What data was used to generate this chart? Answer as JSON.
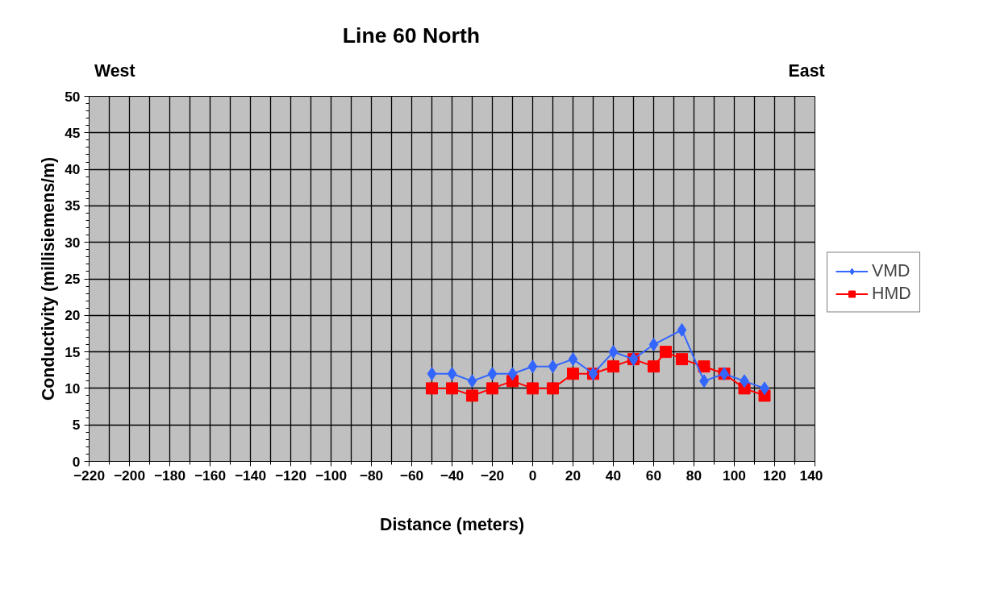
{
  "chart_data": {
    "type": "line",
    "title": "Line 60 North",
    "xlabel": "Distance (meters)",
    "ylabel": "Conductivity (millisiemens/m)",
    "annotations": [
      "West",
      "East"
    ],
    "xlim": [
      -220,
      140
    ],
    "xticks": [
      -220,
      -200,
      -180,
      -160,
      -140,
      -120,
      -100,
      -80,
      -60,
      -40,
      -20,
      0,
      20,
      40,
      60,
      80,
      100,
      120,
      140
    ],
    "ylim": [
      0,
      50
    ],
    "yticks": [
      0,
      5,
      10,
      15,
      20,
      25,
      30,
      35,
      40,
      45,
      50
    ],
    "grid": true,
    "legend": "right",
    "series": [
      {
        "name": "VMD",
        "color": "#3366ff",
        "marker": "diamond",
        "x": [
          -50,
          -40,
          -30,
          -20,
          -10,
          0,
          10,
          20,
          30,
          40,
          50,
          60,
          74,
          85,
          95,
          105,
          115
        ],
        "values": [
          12,
          12,
          11,
          12,
          12,
          13,
          13,
          14,
          12,
          15,
          14,
          16,
          18,
          11,
          12,
          11,
          10
        ]
      },
      {
        "name": "HMD",
        "color": "#ff0000",
        "marker": "square",
        "x": [
          -50,
          -40,
          -30,
          -20,
          -10,
          0,
          10,
          20,
          30,
          40,
          50,
          60,
          66,
          74,
          85,
          95,
          105,
          115
        ],
        "values": [
          10,
          10,
          9,
          10,
          11,
          10,
          10,
          12,
          12,
          13,
          14,
          13,
          15,
          14,
          13,
          12,
          10,
          9
        ]
      }
    ]
  }
}
